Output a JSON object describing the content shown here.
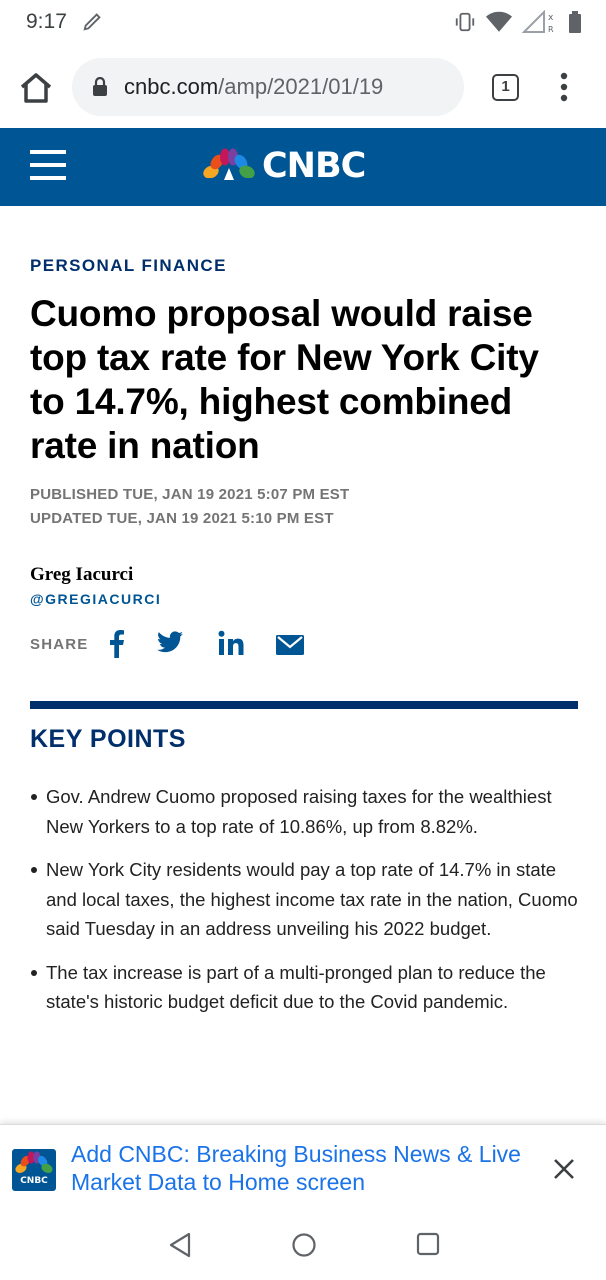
{
  "status_bar": {
    "time": "9:17",
    "icons": [
      "pen-icon",
      "vibrate-icon",
      "wifi-icon",
      "signal-icon",
      "battery-icon"
    ]
  },
  "browser": {
    "url_domain": "cnbc.com",
    "url_path": "/amp/2021/01/19",
    "tab_count": "1",
    "icons": [
      "home-icon",
      "lock-icon",
      "tabs-icon",
      "overflow-menu-icon"
    ]
  },
  "site": {
    "name": "CNBC",
    "brand_color": "#005594",
    "dark_blue": "#002f6c"
  },
  "article": {
    "section": "PERSONAL FINANCE",
    "headline": "Cuomo proposal would raise top tax rate for New York City to 14.7%, highest combined rate in nation",
    "published": "PUBLISHED TUE, JAN 19 2021 5:07 PM EST",
    "updated": "UPDATED TUE, JAN 19 2021 5:10 PM EST",
    "author": "Greg Iacurci",
    "author_handle": "@GREGIACURCI",
    "share_label": "SHARE",
    "share_icons": [
      "facebook-icon",
      "twitter-icon",
      "linkedin-icon",
      "email-icon"
    ],
    "key_points_title": "KEY POINTS",
    "key_points": [
      "Gov. Andrew Cuomo proposed raising taxes for the wealthiest New Yorkers to a top rate of 10.86%, up from 8.82%.",
      "New York City residents would pay a top rate of 14.7% in state and local taxes, the highest income tax rate in the nation, Cuomo said Tuesday in an address unveiling his 2022 budget.",
      "The tax increase is part of a multi-pronged plan to reduce the state's historic budget deficit due to the Covid pandemic."
    ]
  },
  "install_banner": {
    "app_icon_label": "CNBC",
    "text": "Add CNBC: Breaking Business News & Live Market Data to Home screen"
  },
  "nav_bar": {
    "icons": [
      "back-icon",
      "home-nav-icon",
      "recents-icon"
    ]
  }
}
